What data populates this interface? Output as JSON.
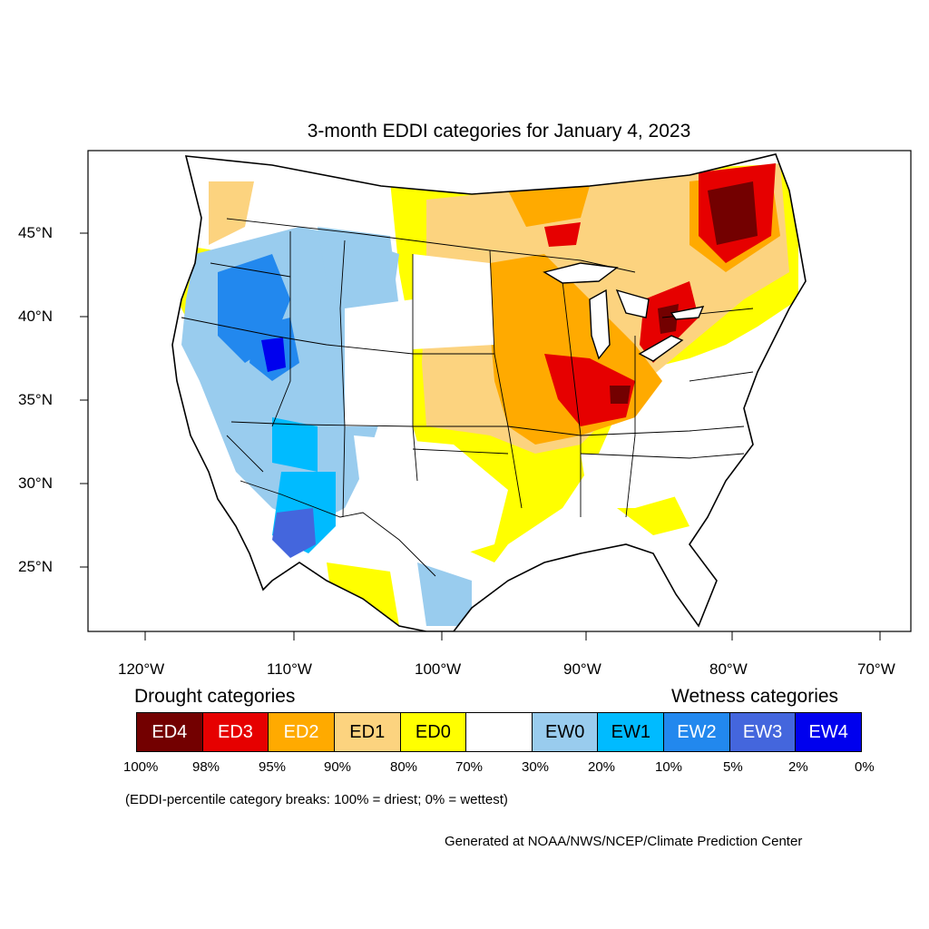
{
  "title": "3-month EDDI categories for January 4, 2023",
  "latitude_labels": [
    "45°N",
    "40°N",
    "35°N",
    "30°N",
    "25°N"
  ],
  "longitude_labels": [
    "120°W",
    "110°W",
    "100°W",
    "90°W",
    "80°W",
    "70°W"
  ],
  "legend": {
    "drought_heading": "Drought categories",
    "wetness_heading": "Wetness categories",
    "categories": [
      {
        "label": "ED4",
        "color": "#730000",
        "text_color": "#ffffff"
      },
      {
        "label": "ED3",
        "color": "#e60000",
        "text_color": "#ffffff"
      },
      {
        "label": "ED2",
        "color": "#ffaa00",
        "text_color": "#ffffff"
      },
      {
        "label": "ED1",
        "color": "#fcd37f",
        "text_color": "#000000"
      },
      {
        "label": "ED0",
        "color": "#ffff00",
        "text_color": "#000000"
      },
      {
        "label": "",
        "color": "#ffffff",
        "text_color": "#000000"
      },
      {
        "label": "EW0",
        "color": "#99ccee",
        "text_color": "#000000"
      },
      {
        "label": "EW1",
        "color": "#00bbff",
        "text_color": "#000000"
      },
      {
        "label": "EW2",
        "color": "#2288ee",
        "text_color": "#ffffff"
      },
      {
        "label": "EW3",
        "color": "#4466dd",
        "text_color": "#ffffff"
      },
      {
        "label": "EW4",
        "color": "#0000ee",
        "text_color": "#ffffff"
      }
    ],
    "percent_breaks": [
      "100%",
      "98%",
      "95%",
      "90%",
      "80%",
      "70%",
      "30%",
      "20%",
      "10%",
      "5%",
      "2%",
      "0%"
    ],
    "note": "(EDDI-percentile category breaks: 100% = driest; 0% = wettest)"
  },
  "credit": "Generated at NOAA/NWS/NCEP/Climate Prediction Center"
}
